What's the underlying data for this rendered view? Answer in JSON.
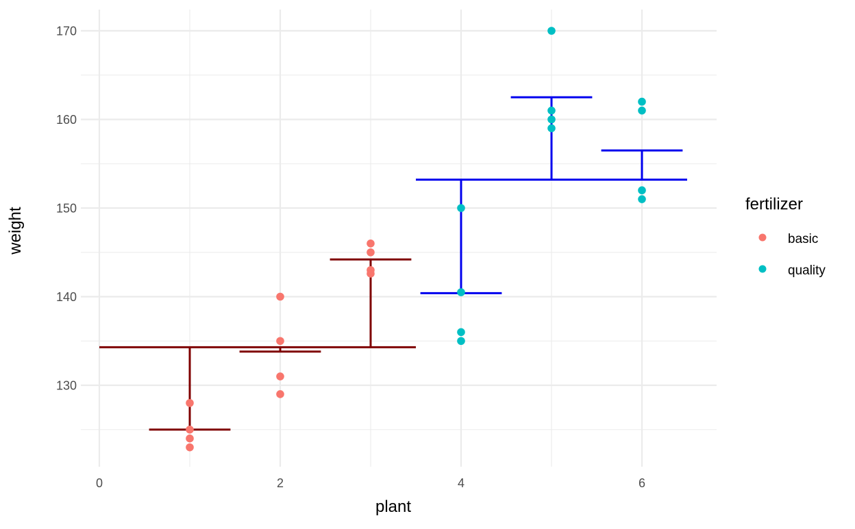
{
  "chart_data": {
    "type": "scatter",
    "title": "",
    "xlabel": "plant",
    "ylabel": "weight",
    "xlim": [
      -0.1,
      6.85
    ],
    "ylim": [
      121,
      172.5
    ],
    "x_ticks": [
      0,
      2,
      4,
      6
    ],
    "x_tick_labels": [
      "0",
      "2",
      "4",
      "6"
    ],
    "y_ticks": [
      130,
      140,
      150,
      160,
      170
    ],
    "y_tick_labels": [
      "130",
      "140",
      "150",
      "160",
      "170"
    ],
    "grid": true,
    "legend": {
      "title": "fertilizer",
      "position": "right",
      "entries": [
        {
          "label": "basic",
          "color": "#F8766D"
        },
        {
          "label": "quality",
          "color": "#00BFC4"
        }
      ]
    },
    "series": [
      {
        "name": "basic",
        "color": "#F8766D",
        "points": [
          {
            "x": 1,
            "y": 128
          },
          {
            "x": 1,
            "y": 125
          },
          {
            "x": 1,
            "y": 124
          },
          {
            "x": 1,
            "y": 123
          },
          {
            "x": 2,
            "y": 140
          },
          {
            "x": 2,
            "y": 135
          },
          {
            "x": 2,
            "y": 131
          },
          {
            "x": 2,
            "y": 129
          },
          {
            "x": 3,
            "y": 146
          },
          {
            "x": 3,
            "y": 145
          },
          {
            "x": 3,
            "y": 143
          },
          {
            "x": 3,
            "y": 142.6
          }
        ]
      },
      {
        "name": "quality",
        "color": "#00BFC4",
        "points": [
          {
            "x": 4,
            "y": 150
          },
          {
            "x": 4,
            "y": 140.5
          },
          {
            "x": 4,
            "y": 136
          },
          {
            "x": 4,
            "y": 135
          },
          {
            "x": 5,
            "y": 170
          },
          {
            "x": 5,
            "y": 161
          },
          {
            "x": 5,
            "y": 160
          },
          {
            "x": 5,
            "y": 159
          },
          {
            "x": 6,
            "y": 162
          },
          {
            "x": 6,
            "y": 161
          },
          {
            "x": 6,
            "y": 152
          },
          {
            "x": 6,
            "y": 151
          }
        ]
      }
    ],
    "group_mean_segments": [
      {
        "group": "basic",
        "color": "#7F0000",
        "x_start": 0,
        "x_end": 3.5,
        "y": 134.3
      },
      {
        "group": "quality",
        "color": "#0000EE",
        "x_start": 3.5,
        "x_end": 6.5,
        "y": 153.2
      }
    ],
    "plant_mean_segments": [
      {
        "plant": 1,
        "color": "#7F0000",
        "x_start": 0.55,
        "x_end": 1.45,
        "y": 125,
        "group_mean": 134.3
      },
      {
        "plant": 2,
        "color": "#7F0000",
        "x_start": 1.55,
        "x_end": 2.45,
        "y": 133.8,
        "group_mean": 134.3
      },
      {
        "plant": 3,
        "color": "#7F0000",
        "x_start": 2.55,
        "x_end": 3.45,
        "y": 144.2,
        "group_mean": 134.3
      },
      {
        "plant": 4,
        "color": "#0000EE",
        "x_start": 3.55,
        "x_end": 4.45,
        "y": 140.4,
        "group_mean": 153.2
      },
      {
        "plant": 5,
        "color": "#0000EE",
        "x_start": 4.55,
        "x_end": 5.45,
        "y": 162.5,
        "group_mean": 153.2
      },
      {
        "plant": 6,
        "color": "#0000EE",
        "x_start": 5.55,
        "x_end": 6.45,
        "y": 156.5,
        "group_mean": 153.2
      }
    ]
  }
}
